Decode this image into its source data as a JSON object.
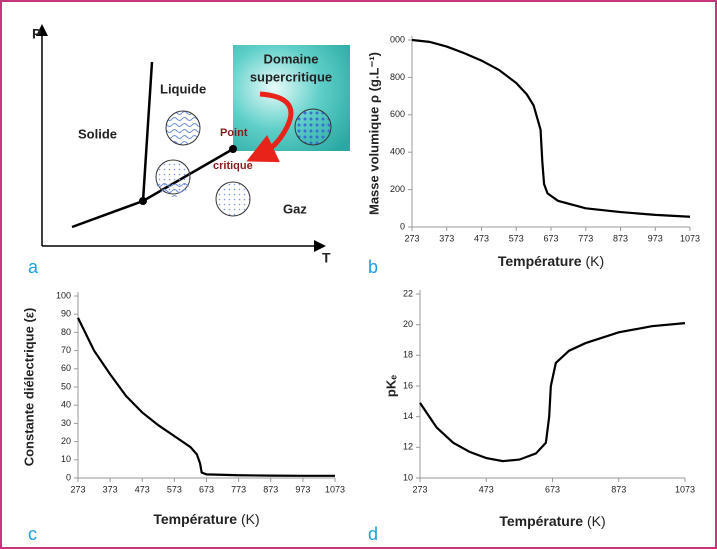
{
  "diagram": {
    "panel_label": "a",
    "p_axis": "P",
    "t_axis": "T",
    "solid": "Solide",
    "liquid": "Liquide",
    "gas": "Gaz",
    "supercritical": [
      "Domaine",
      "supercritique"
    ],
    "critical_point": [
      "Point",
      "critique"
    ]
  },
  "chart_data": [
    {
      "type": "line",
      "panel_label": "b",
      "y_label": "Masse volumique ρ (g.L⁻¹)",
      "x_label": "Température",
      "x_unit": "(K)",
      "color": "#000000",
      "x": [
        273,
        323,
        373,
        423,
        473,
        523,
        573,
        603,
        623,
        643,
        648,
        653,
        663,
        693,
        773,
        873,
        973,
        1073
      ],
      "values": [
        1000,
        990,
        965,
        930,
        890,
        840,
        770,
        710,
        650,
        520,
        350,
        230,
        180,
        140,
        100,
        80,
        65,
        55
      ],
      "xlim": [
        273,
        1073
      ],
      "xticks": [
        273,
        373,
        473,
        573,
        673,
        773,
        873,
        973,
        1073
      ],
      "ylim": [
        0,
        1000
      ],
      "yticks": [
        0,
        200,
        400,
        600,
        800,
        {
          "value": 1000,
          "label": "000"
        }
      ]
    },
    {
      "type": "line",
      "panel_label": "c",
      "y_label": "Constante diélectrique (ε)",
      "x_label": "Température",
      "x_unit": "(K)",
      "color": "#000000",
      "x": [
        273,
        323,
        373,
        423,
        473,
        523,
        573,
        623,
        643,
        653,
        658,
        673,
        773,
        873,
        973,
        1073
      ],
      "values": [
        88,
        70,
        57,
        45,
        36,
        29,
        23,
        17,
        13,
        8,
        3,
        2,
        1.5,
        1.3,
        1.2,
        1.2
      ],
      "xlim": [
        273,
        1073
      ],
      "xticks": [
        273,
        373,
        473,
        573,
        673,
        773,
        873,
        973,
        1073
      ],
      "ylim": [
        0,
        100
      ],
      "yticks": [
        0,
        10,
        20,
        30,
        40,
        50,
        60,
        70,
        80,
        90,
        100
      ]
    },
    {
      "type": "line",
      "panel_label": "d",
      "y_label": "pKₑ",
      "x_label": "Température",
      "x_unit": "(K)",
      "color": "#000000",
      "x": [
        273,
        323,
        373,
        423,
        473,
        523,
        573,
        623,
        653,
        663,
        668,
        683,
        723,
        773,
        873,
        973,
        1073
      ],
      "values": [
        14.9,
        13.3,
        12.3,
        11.7,
        11.3,
        11.1,
        11.2,
        11.6,
        12.3,
        14,
        16,
        17.5,
        18.3,
        18.8,
        19.5,
        19.9,
        20.1
      ],
      "xlim": [
        273,
        1073
      ],
      "xticks": [
        273,
        473,
        673,
        873,
        1073
      ],
      "ylim": [
        10,
        22
      ],
      "yticks": [
        10,
        12,
        14,
        16,
        18,
        20,
        22
      ]
    }
  ]
}
